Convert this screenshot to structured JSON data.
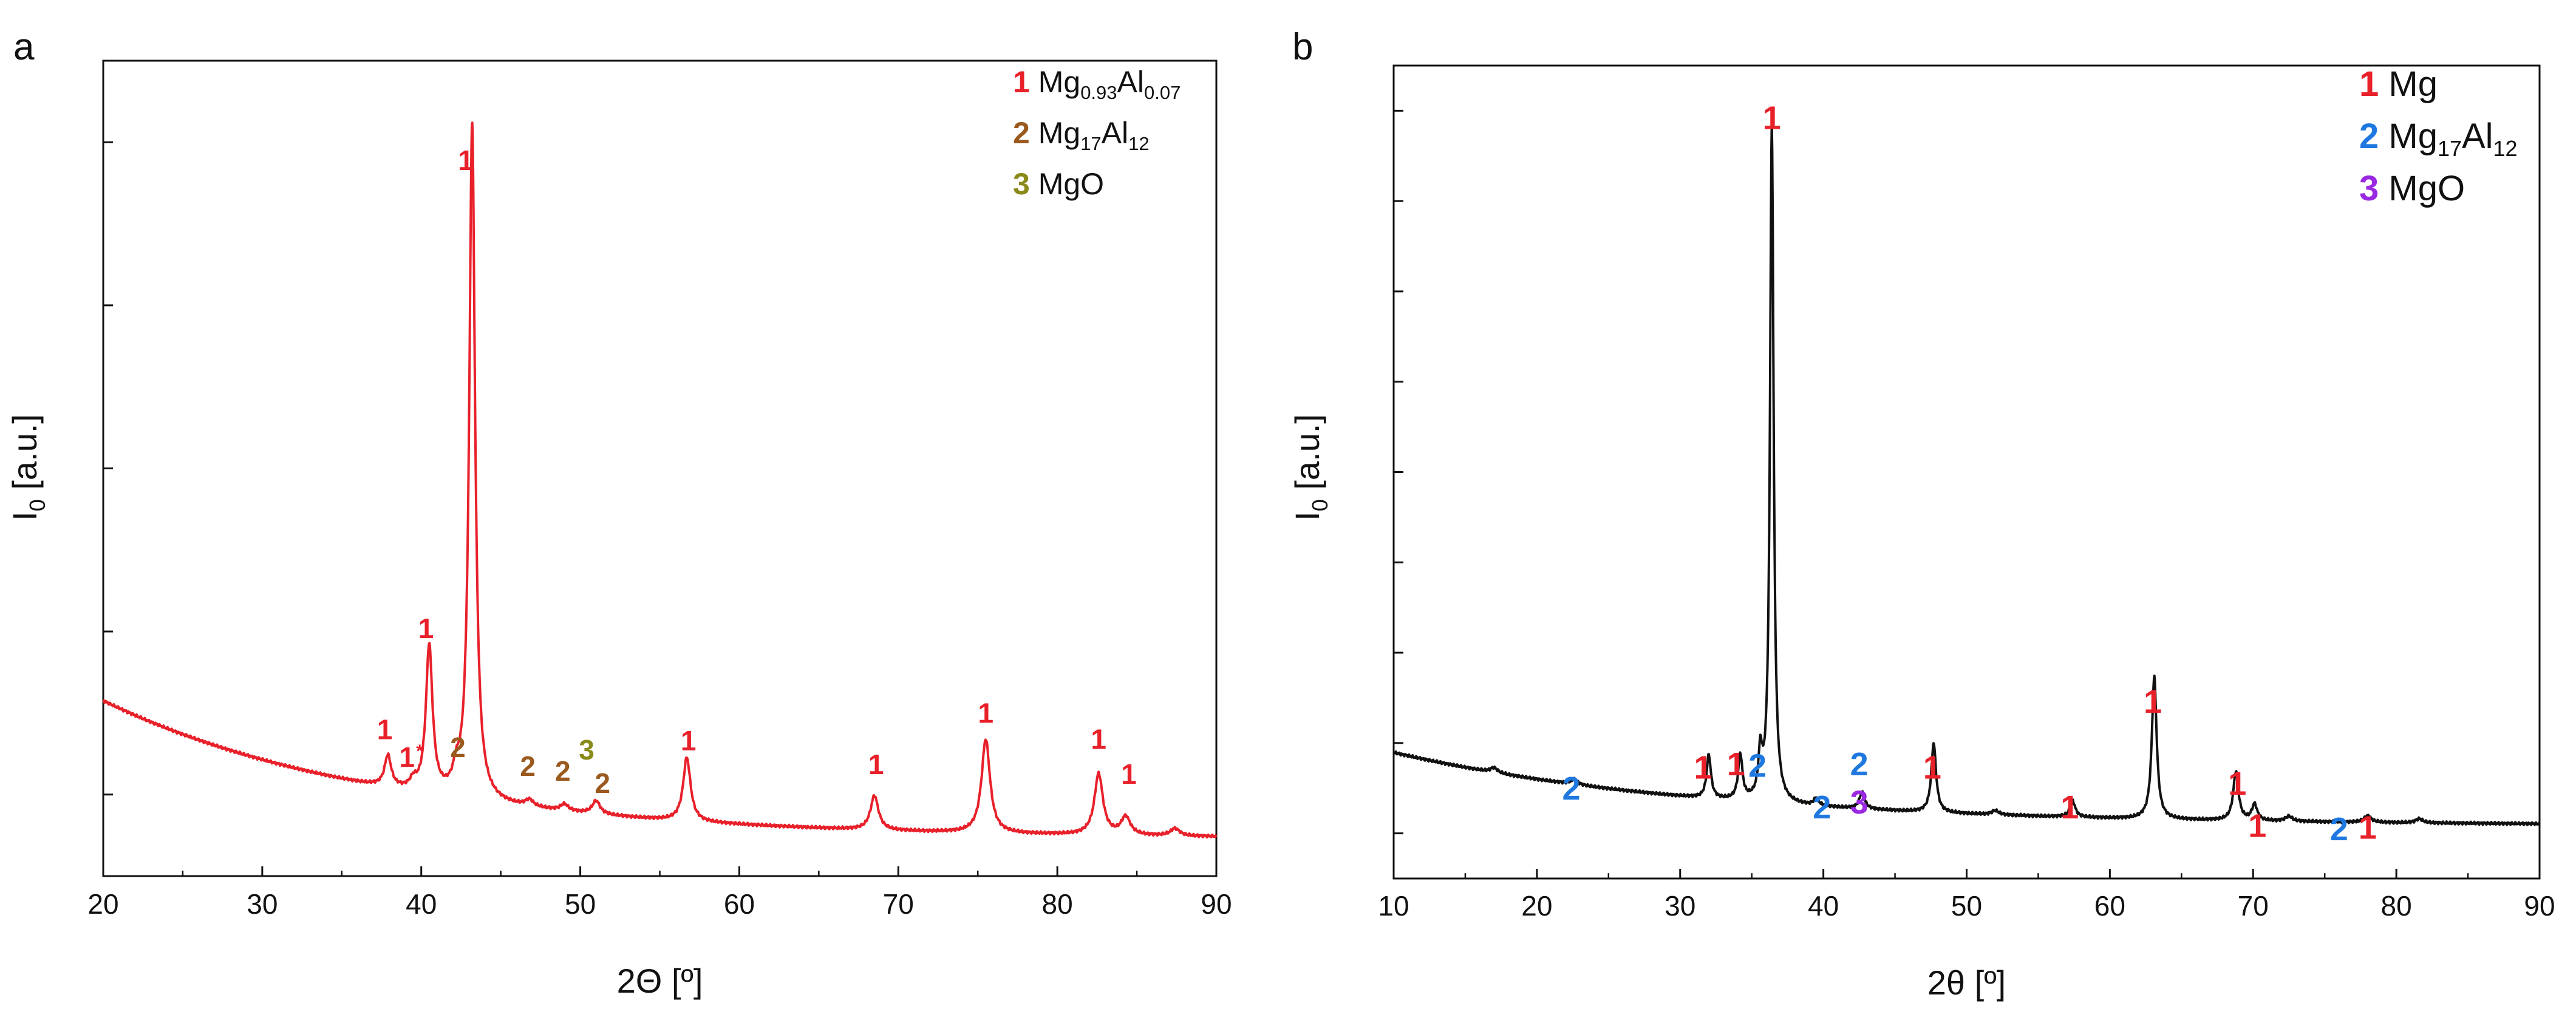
{
  "chart_data": [
    {
      "panel": "a",
      "type": "line",
      "title": "",
      "xlabel": "2Θ [º]",
      "ylabel_main": "I",
      "ylabel_sub": "0",
      "ylabel_unit": " [a.u.]",
      "xlim": [
        20,
        90
      ],
      "ylim": [
        0,
        100
      ],
      "xticks": [
        20,
        30,
        40,
        50,
        60,
        70,
        80,
        90
      ],
      "yticks_count": 5,
      "grid": false,
      "legend_position": "top-right",
      "line_color": "#e8202a",
      "legend": [
        {
          "num": "1",
          "color": "#e8202a",
          "main": "Mg",
          "sub1": "0.93",
          "mid": "Al",
          "sub2": "0.07"
        },
        {
          "num": "2",
          "color": "#9a5a1e",
          "main": "Mg",
          "sub1": "17",
          "mid": "Al",
          "sub2": "12"
        },
        {
          "num": "3",
          "color": "#8a8a1a",
          "main": "MgO",
          "sub1": "",
          "mid": "",
          "sub2": ""
        }
      ],
      "baseline": {
        "start": 21.5,
        "amp": 17,
        "decay": 18,
        "floor": 4.5
      },
      "peaks": [
        {
          "x": 37.9,
          "h": 3.8,
          "w": 0.25
        },
        {
          "x": 39.5,
          "h": 1.0,
          "w": 0.25
        },
        {
          "x": 40.5,
          "h": 18.0,
          "w": 0.25
        },
        {
          "x": 42.2,
          "h": 2.0,
          "w": 0.25
        },
        {
          "x": 43.2,
          "h": 83.0,
          "w": 0.22
        },
        {
          "x": 46.8,
          "h": 0.8,
          "w": 0.3
        },
        {
          "x": 49.0,
          "h": 0.8,
          "w": 0.3
        },
        {
          "x": 51.0,
          "h": 1.6,
          "w": 0.3
        },
        {
          "x": 56.7,
          "h": 7.8,
          "w": 0.28
        },
        {
          "x": 68.5,
          "h": 4.2,
          "w": 0.3
        },
        {
          "x": 75.5,
          "h": 11.5,
          "w": 0.32
        },
        {
          "x": 82.6,
          "h": 7.5,
          "w": 0.32
        },
        {
          "x": 84.3,
          "h": 2.2,
          "w": 0.35
        },
        {
          "x": 87.4,
          "h": 0.9,
          "w": 0.35
        }
      ],
      "annotations": [
        {
          "text": "1",
          "x": 37.7,
          "y": 16.8,
          "color": "#e8202a"
        },
        {
          "text": "1",
          "x": 39.1,
          "y": 13.4,
          "color": "#e8202a"
        },
        {
          "text": "*",
          "x": 39.9,
          "y": 14.6,
          "color": "#e8202a",
          "small": true
        },
        {
          "text": "1",
          "x": 40.3,
          "y": 29.2,
          "color": "#e8202a"
        },
        {
          "text": "2",
          "x": 42.3,
          "y": 14.6,
          "color": "#9a5a1e"
        },
        {
          "text": "1",
          "x": 42.8,
          "y": 86.6,
          "color": "#e8202a"
        },
        {
          "text": "2",
          "x": 46.7,
          "y": 12.3,
          "color": "#9a5a1e"
        },
        {
          "text": "2",
          "x": 48.9,
          "y": 11.7,
          "color": "#9a5a1e"
        },
        {
          "text": "3",
          "x": 50.4,
          "y": 14.3,
          "color": "#8a8a1a"
        },
        {
          "text": "2",
          "x": 51.4,
          "y": 10.2,
          "color": "#9a5a1e"
        },
        {
          "text": "1",
          "x": 56.8,
          "y": 15.4,
          "color": "#e8202a"
        },
        {
          "text": "1",
          "x": 68.6,
          "y": 12.5,
          "color": "#e8202a"
        },
        {
          "text": "1",
          "x": 75.5,
          "y": 18.8,
          "color": "#e8202a"
        },
        {
          "text": "1",
          "x": 82.6,
          "y": 15.6,
          "color": "#e8202a"
        },
        {
          "text": "1",
          "x": 84.5,
          "y": 11.3,
          "color": "#e8202a"
        }
      ]
    },
    {
      "panel": "b",
      "type": "line",
      "title": "",
      "xlabel": "2θ [º]",
      "ylabel_main": "I",
      "ylabel_sub": "0",
      "ylabel_unit": " [a.u.]",
      "xlim": [
        10,
        90
      ],
      "ylim": [
        0,
        100
      ],
      "xticks": [
        10,
        20,
        30,
        40,
        50,
        60,
        70,
        80,
        90
      ],
      "yticks_count": 9,
      "grid": false,
      "legend_position": "top-right",
      "line_color": "#111111",
      "legend": [
        {
          "num": "1",
          "color": "#e8202a",
          "main": "Mg",
          "sub1": "",
          "mid": "",
          "sub2": ""
        },
        {
          "num": "2",
          "color": "#1e78e0",
          "main": "Mg",
          "sub1": "17",
          "mid": "Al",
          "sub2": "12"
        },
        {
          "num": "3",
          "color": "#9a28e0",
          "main": "MgO",
          "sub1": "",
          "mid": "",
          "sub2": ""
        }
      ],
      "baseline": {
        "start": 15.8,
        "amp": 9,
        "decay": 22,
        "floor": 6.5
      },
      "peaks": [
        {
          "x": 17.0,
          "h": 0.6,
          "w": 0.3
        },
        {
          "x": 22.6,
          "h": 0.6,
          "w": 0.3
        },
        {
          "x": 32.0,
          "h": 5.3,
          "w": 0.18
        },
        {
          "x": 34.2,
          "h": 5.5,
          "w": 0.18
        },
        {
          "x": 35.6,
          "h": 5.3,
          "w": 0.16
        },
        {
          "x": 36.4,
          "h": 83.5,
          "w": 0.15
        },
        {
          "x": 39.5,
          "h": 0.9,
          "w": 0.2
        },
        {
          "x": 42.7,
          "h": 2.0,
          "w": 0.22
        },
        {
          "x": 47.7,
          "h": 8.5,
          "w": 0.2
        },
        {
          "x": 52.0,
          "h": 0.5,
          "w": 0.3
        },
        {
          "x": 57.4,
          "h": 2.0,
          "w": 0.22
        },
        {
          "x": 63.1,
          "h": 17.5,
          "w": 0.2
        },
        {
          "x": 68.8,
          "h": 6.0,
          "w": 0.22
        },
        {
          "x": 70.1,
          "h": 2.0,
          "w": 0.22
        },
        {
          "x": 72.5,
          "h": 0.6,
          "w": 0.3
        },
        {
          "x": 78.0,
          "h": 0.8,
          "w": 0.3
        },
        {
          "x": 81.6,
          "h": 0.5,
          "w": 0.3
        }
      ],
      "annotations": [
        {
          "text": "2",
          "x": 22.4,
          "y": 9.7,
          "color": "#1e78e0"
        },
        {
          "text": "1",
          "x": 31.6,
          "y": 12.3,
          "color": "#e8202a"
        },
        {
          "text": "1",
          "x": 33.9,
          "y": 12.7,
          "color": "#e8202a"
        },
        {
          "text": "2",
          "x": 35.4,
          "y": 12.5,
          "color": "#1e78e0"
        },
        {
          "text": "1",
          "x": 36.4,
          "y": 92.2,
          "color": "#e8202a"
        },
        {
          "text": "2",
          "x": 39.9,
          "y": 7.4,
          "color": "#1e78e0"
        },
        {
          "text": "2",
          "x": 42.5,
          "y": 12.7,
          "color": "#1e78e0"
        },
        {
          "text": "3",
          "x": 42.5,
          "y": 8.0,
          "color": "#9a28e0"
        },
        {
          "text": "1",
          "x": 47.6,
          "y": 12.3,
          "color": "#e8202a"
        },
        {
          "text": "1",
          "x": 57.2,
          "y": 7.4,
          "color": "#e8202a"
        },
        {
          "text": "1",
          "x": 63.0,
          "y": 20.4,
          "color": "#e8202a"
        },
        {
          "text": "1",
          "x": 68.9,
          "y": 10.3,
          "color": "#e8202a"
        },
        {
          "text": "1",
          "x": 70.3,
          "y": 5.1,
          "color": "#e8202a"
        },
        {
          "text": "2",
          "x": 76.0,
          "y": 4.7,
          "color": "#1e78e0"
        },
        {
          "text": "1",
          "x": 78.0,
          "y": 4.9,
          "color": "#e8202a"
        }
      ]
    }
  ]
}
